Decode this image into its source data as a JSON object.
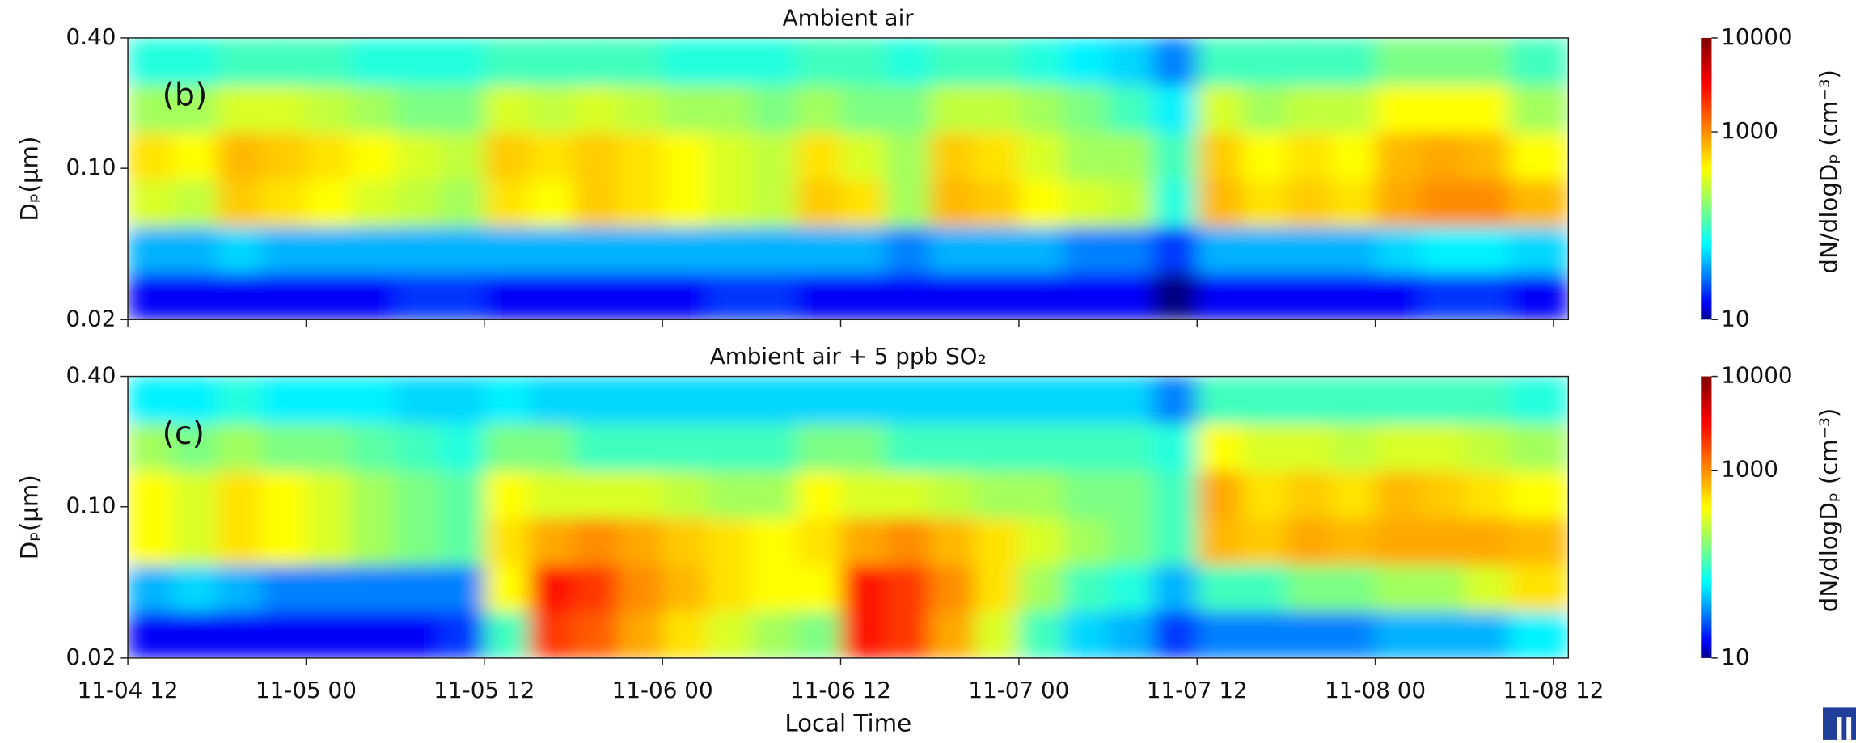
{
  "chart_data": [
    {
      "type": "heatmap",
      "title": "Ambient air",
      "panel_label": "(b)",
      "ylabel": "Dₚ(μm)",
      "x_bins": [
        0,
        3,
        6,
        9,
        12,
        15,
        18,
        21,
        24,
        27,
        30,
        33,
        36,
        39,
        42,
        45,
        48,
        51,
        54,
        57,
        60,
        63,
        66,
        69,
        72,
        75,
        78,
        81,
        84,
        87,
        90,
        93,
        97
      ],
      "y_bins": [
        0.02,
        0.033,
        0.054,
        0.089,
        0.147,
        0.243,
        0.4
      ],
      "z": [
        [
          15,
          15,
          15,
          15,
          15,
          15,
          20,
          20,
          15,
          15,
          15,
          15,
          15,
          20,
          20,
          15,
          15,
          15,
          15,
          15,
          15,
          15,
          15,
          10,
          15,
          15,
          15,
          15,
          15,
          20,
          20,
          15
        ],
        [
          40,
          40,
          50,
          40,
          40,
          40,
          40,
          40,
          40,
          40,
          40,
          40,
          40,
          40,
          40,
          40,
          40,
          30,
          40,
          40,
          40,
          30,
          30,
          20,
          40,
          40,
          40,
          40,
          50,
          60,
          60,
          50
        ],
        [
          300,
          250,
          600,
          500,
          400,
          300,
          250,
          200,
          500,
          400,
          600,
          500,
          400,
          300,
          250,
          600,
          500,
          200,
          700,
          600,
          400,
          300,
          250,
          80,
          700,
          500,
          600,
          500,
          800,
          1000,
          1000,
          700
        ],
        [
          500,
          400,
          700,
          600,
          500,
          400,
          300,
          250,
          600,
          500,
          600,
          500,
          400,
          300,
          250,
          500,
          300,
          200,
          600,
          500,
          300,
          200,
          200,
          100,
          600,
          400,
          500,
          400,
          700,
          800,
          700,
          400
        ],
        [
          200,
          200,
          300,
          300,
          250,
          200,
          150,
          150,
          300,
          250,
          300,
          250,
          200,
          200,
          150,
          200,
          150,
          150,
          250,
          250,
          200,
          150,
          100,
          60,
          300,
          200,
          250,
          250,
          400,
          400,
          400,
          200
        ],
        [
          80,
          80,
          100,
          100,
          100,
          80,
          80,
          80,
          100,
          100,
          100,
          100,
          80,
          80,
          80,
          100,
          100,
          80,
          100,
          100,
          80,
          60,
          50,
          30,
          100,
          100,
          100,
          100,
          150,
          150,
          150,
          100
        ]
      ],
      "xlim": [
        0,
        97
      ],
      "xticks": [
        0,
        12,
        24,
        36,
        48,
        60,
        72,
        84,
        96
      ],
      "ylim": [
        0.02,
        0.4
      ],
      "ylog": true,
      "yticks": [
        0.02,
        {
          "value": 0.1,
          "label": "0.10"
        },
        {
          "value": 0.4,
          "label": "0.40"
        }
      ],
      "colorbar": {
        "label": "dN/dlogDₚ (cm⁻³)",
        "lim": [
          10,
          10000
        ],
        "log": true,
        "ticks": [
          10,
          1000,
          10000
        ],
        "colormap": "jet"
      }
    },
    {
      "type": "heatmap",
      "title": "Ambient air + 5 ppb SO₂",
      "panel_label": "(c)",
      "ylabel": "Dₚ(μm)",
      "xlabel": "Local Time",
      "x_bins": [
        0,
        3,
        6,
        9,
        12,
        15,
        18,
        21,
        24,
        27,
        30,
        33,
        36,
        39,
        42,
        45,
        48,
        51,
        54,
        57,
        60,
        63,
        66,
        69,
        72,
        75,
        78,
        81,
        84,
        87,
        90,
        93,
        97
      ],
      "y_bins": [
        0.02,
        0.033,
        0.054,
        0.089,
        0.147,
        0.243,
        0.4
      ],
      "z": [
        [
          15,
          15,
          15,
          15,
          15,
          15,
          15,
          20,
          100,
          2000,
          1500,
          800,
          500,
          300,
          200,
          150,
          3000,
          2000,
          800,
          300,
          100,
          50,
          40,
          20,
          30,
          30,
          30,
          30,
          40,
          40,
          40,
          60
        ],
        [
          40,
          50,
          40,
          30,
          30,
          30,
          30,
          30,
          400,
          3000,
          2000,
          1000,
          700,
          500,
          400,
          400,
          3000,
          2000,
          1000,
          500,
          200,
          100,
          80,
          40,
          100,
          100,
          150,
          150,
          200,
          200,
          300,
          500
        ],
        [
          400,
          300,
          500,
          400,
          300,
          200,
          150,
          120,
          500,
          800,
          1000,
          800,
          600,
          500,
          400,
          500,
          800,
          1000,
          700,
          500,
          300,
          200,
          150,
          100,
          700,
          600,
          800,
          700,
          800,
          800,
          800,
          700
        ],
        [
          400,
          300,
          500,
          400,
          300,
          200,
          150,
          120,
          400,
          300,
          300,
          300,
          250,
          200,
          200,
          400,
          300,
          300,
          250,
          200,
          200,
          150,
          150,
          100,
          800,
          500,
          600,
          500,
          700,
          600,
          500,
          400
        ],
        [
          200,
          150,
          200,
          150,
          150,
          120,
          100,
          80,
          150,
          150,
          100,
          100,
          100,
          100,
          100,
          150,
          150,
          100,
          100,
          100,
          100,
          100,
          100,
          80,
          400,
          300,
          300,
          250,
          300,
          300,
          250,
          200
        ],
        [
          60,
          60,
          80,
          60,
          60,
          60,
          50,
          50,
          60,
          50,
          50,
          50,
          50,
          50,
          50,
          50,
          50,
          50,
          50,
          50,
          50,
          50,
          50,
          30,
          100,
          100,
          100,
          100,
          100,
          100,
          100,
          80
        ]
      ],
      "xlim": [
        0,
        97
      ],
      "xticks": [
        {
          "value": 0,
          "label": "11-04 12"
        },
        {
          "value": 12,
          "label": "11-05 00"
        },
        {
          "value": 24,
          "label": "11-05 12"
        },
        {
          "value": 36,
          "label": "11-06 00"
        },
        {
          "value": 48,
          "label": "11-06 12"
        },
        {
          "value": 60,
          "label": "11-07 00"
        },
        {
          "value": 72,
          "label": "11-07 12"
        },
        {
          "value": 84,
          "label": "11-08 00"
        },
        {
          "value": 96,
          "label": "11-08 12"
        }
      ],
      "ylim": [
        0.02,
        0.4
      ],
      "ylog": true,
      "yticks": [
        0.02,
        {
          "value": 0.1,
          "label": "0.10"
        },
        {
          "value": 0.4,
          "label": "0.40"
        }
      ],
      "colorbar": {
        "label": "dN/dlogDₚ (cm⁻³)",
        "lim": [
          10,
          10000
        ],
        "log": true,
        "ticks": [
          10,
          1000,
          10000
        ],
        "colormap": "jet"
      }
    }
  ]
}
